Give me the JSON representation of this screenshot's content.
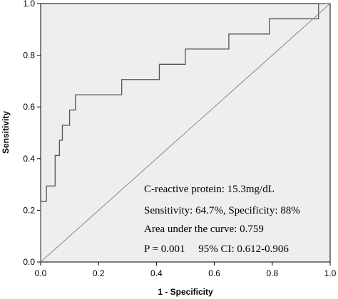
{
  "chart_data": {
    "type": "line",
    "xlabel": "1 - Specificity",
    "ylabel": "Sensitivity",
    "xlim": [
      0.0,
      1.0
    ],
    "ylim": [
      0.0,
      1.0
    ],
    "x_ticks": [
      "0.0",
      "0.2",
      "0.4",
      "0.6",
      "0.8",
      "1.0"
    ],
    "y_ticks": [
      "0.0",
      "0.2",
      "0.4",
      "0.6",
      "0.8",
      "1.0"
    ],
    "grid": false,
    "background_color": "#eeeeee",
    "series": [
      {
        "color": "#555555",
        "points": [
          [
            0.0,
            0.0
          ],
          [
            0.0,
            0.235
          ],
          [
            0.02,
            0.235
          ],
          [
            0.02,
            0.294
          ],
          [
            0.05,
            0.294
          ],
          [
            0.05,
            0.412
          ],
          [
            0.065,
            0.412
          ],
          [
            0.065,
            0.471
          ],
          [
            0.075,
            0.471
          ],
          [
            0.075,
            0.529
          ],
          [
            0.1,
            0.529
          ],
          [
            0.1,
            0.588
          ],
          [
            0.12,
            0.588
          ],
          [
            0.12,
            0.647
          ],
          [
            0.28,
            0.647
          ],
          [
            0.28,
            0.706
          ],
          [
            0.41,
            0.706
          ],
          [
            0.41,
            0.765
          ],
          [
            0.5,
            0.765
          ],
          [
            0.5,
            0.824
          ],
          [
            0.65,
            0.824
          ],
          [
            0.65,
            0.882
          ],
          [
            0.79,
            0.882
          ],
          [
            0.79,
            0.941
          ],
          [
            0.96,
            0.941
          ],
          [
            0.96,
            1.0
          ],
          [
            1.0,
            1.0
          ]
        ]
      },
      {
        "color": "#888888",
        "points": [
          [
            0.0,
            0.0
          ],
          [
            1.0,
            1.0
          ]
        ]
      }
    ],
    "annotations": [
      "C-reactive protein: 15.3mg/dL",
      "Sensitivity: 64.7%, Specificity: 88%",
      "Area under the curve: 0.759",
      "P = 0.001     95% CI: 0.612-0.906"
    ]
  }
}
